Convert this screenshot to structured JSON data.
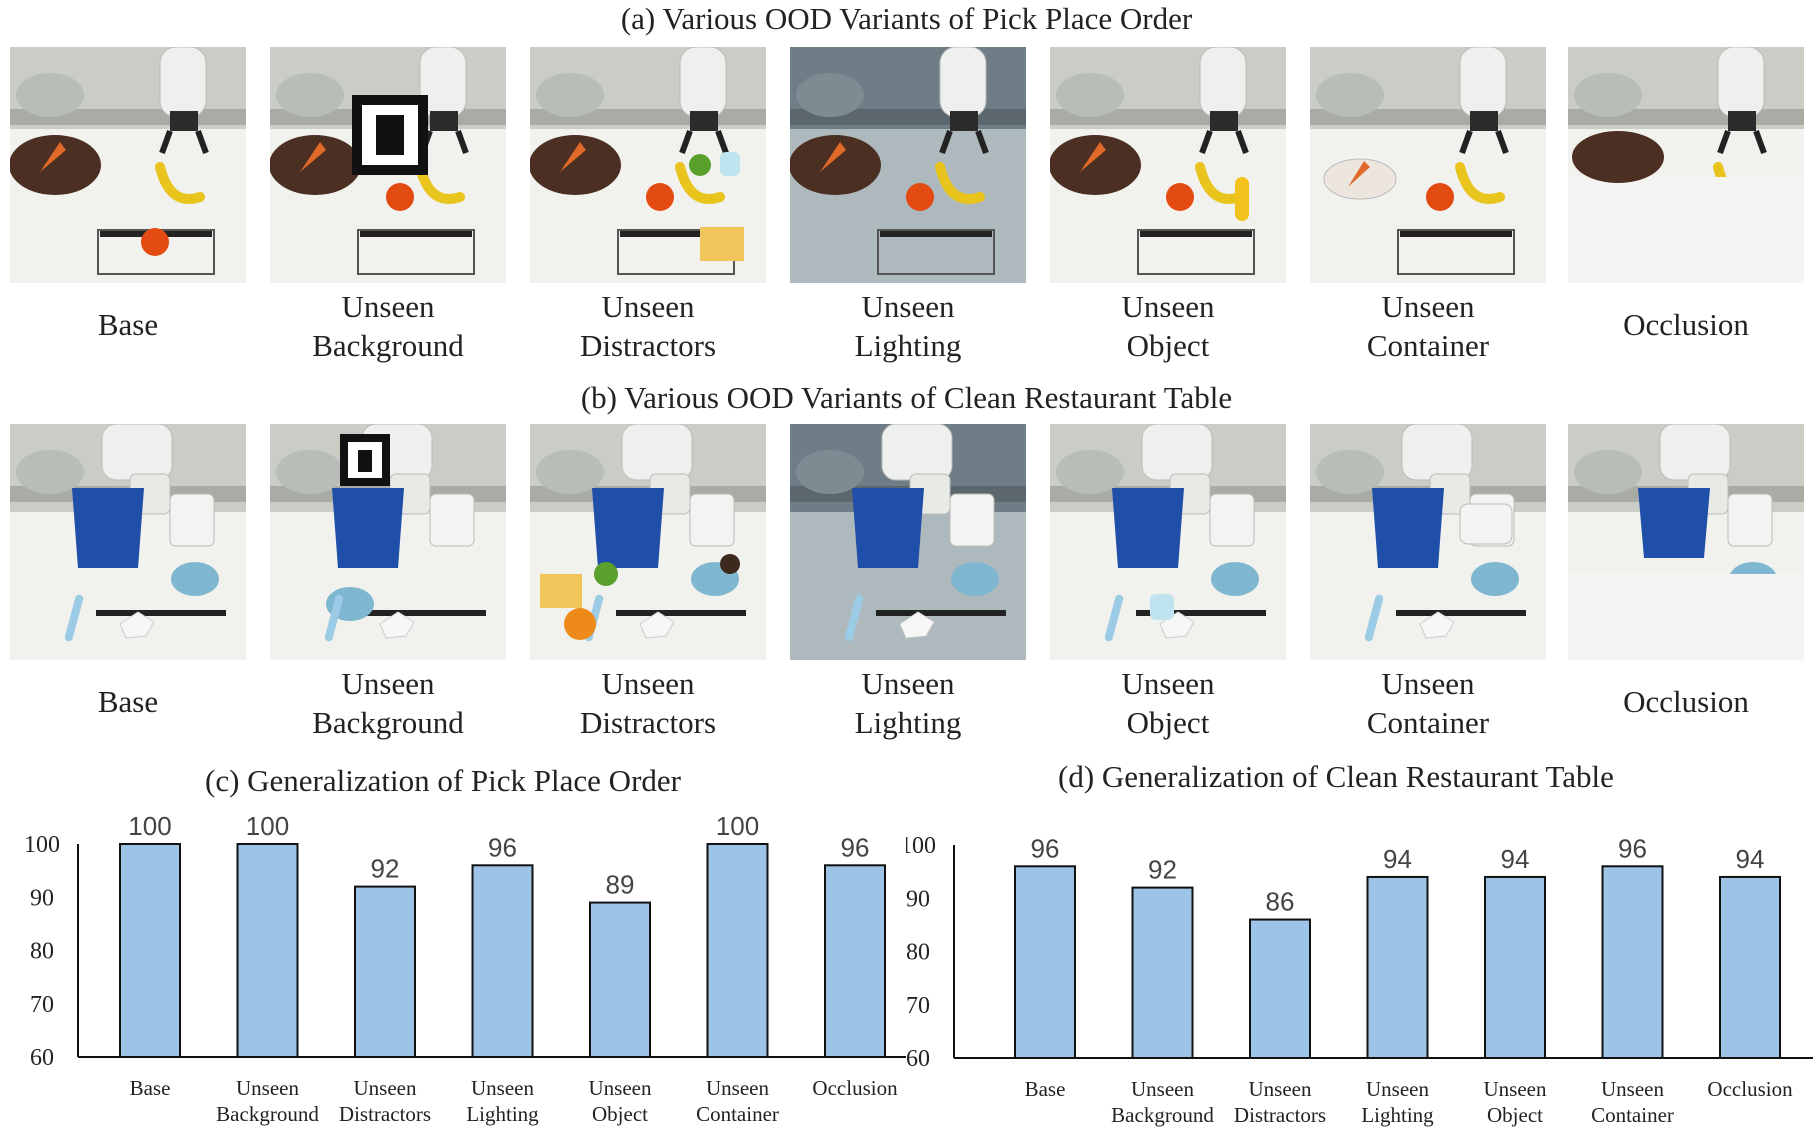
{
  "panel_a": {
    "title": "(a) Various OOD Variants of Pick Place Order",
    "variants": [
      {
        "line1": "Base",
        "line2": "",
        "scene": "pick-place-base"
      },
      {
        "line1": "Unseen",
        "line2": "Background",
        "scene": "pick-place-unseen-background"
      },
      {
        "line1": "Unseen",
        "line2": "Distractors",
        "scene": "pick-place-unseen-distractors"
      },
      {
        "line1": "Unseen",
        "line2": "Lighting",
        "scene": "pick-place-unseen-lighting"
      },
      {
        "line1": "Unseen",
        "line2": "Object",
        "scene": "pick-place-unseen-object"
      },
      {
        "line1": "Unseen",
        "line2": "Container",
        "scene": "pick-place-unseen-container"
      },
      {
        "line1": "Occlusion",
        "line2": "",
        "scene": "pick-place-occlusion"
      }
    ]
  },
  "panel_b": {
    "title": "(b) Various OOD Variants of Clean Restaurant Table",
    "variants": [
      {
        "line1": "Base",
        "line2": "",
        "scene": "clean-table-base"
      },
      {
        "line1": "Unseen",
        "line2": "Background",
        "scene": "clean-table-unseen-background"
      },
      {
        "line1": "Unseen",
        "line2": "Distractors",
        "scene": "clean-table-unseen-distractors"
      },
      {
        "line1": "Unseen",
        "line2": "Lighting",
        "scene": "clean-table-unseen-lighting"
      },
      {
        "line1": "Unseen",
        "line2": "Object",
        "scene": "clean-table-unseen-object"
      },
      {
        "line1": "Unseen",
        "line2": "Container",
        "scene": "clean-table-unseen-container"
      },
      {
        "line1": "Occlusion",
        "line2": "",
        "scene": "clean-table-occlusion"
      }
    ]
  },
  "colors": {
    "bar_fill": "#9dc3e6",
    "bar_stroke": "#111111",
    "axis": "#111111"
  },
  "chart_data": [
    {
      "type": "bar",
      "title": "(c) Generalization of Pick Place Order",
      "categories": [
        [
          "Base"
        ],
        [
          "Unseen",
          "Background"
        ],
        [
          "Unseen",
          "Distractors"
        ],
        [
          "Unseen",
          "Lighting"
        ],
        [
          "Unseen",
          "Object"
        ],
        [
          "Unseen",
          "Container"
        ],
        [
          "Occlusion"
        ]
      ],
      "values": [
        100,
        100,
        92,
        96,
        89,
        100,
        96
      ],
      "ylim": [
        60,
        100
      ],
      "yticks": [
        60,
        70,
        80,
        90,
        100
      ],
      "xlabel": "",
      "ylabel": "",
      "grid": false
    },
    {
      "type": "bar",
      "title": "(d) Generalization of Clean Restaurant Table",
      "categories": [
        [
          "Base"
        ],
        [
          "Unseen",
          "Background"
        ],
        [
          "Unseen",
          "Distractors"
        ],
        [
          "Unseen",
          "Lighting"
        ],
        [
          "Unseen",
          "Object"
        ],
        [
          "Unseen",
          "Container"
        ],
        [
          "Occlusion"
        ]
      ],
      "values": [
        96,
        92,
        86,
        94,
        94,
        96,
        94
      ],
      "ylim": [
        60,
        100
      ],
      "yticks": [
        60,
        70,
        80,
        90,
        100
      ],
      "xlabel": "",
      "ylabel": "",
      "grid": false
    }
  ]
}
